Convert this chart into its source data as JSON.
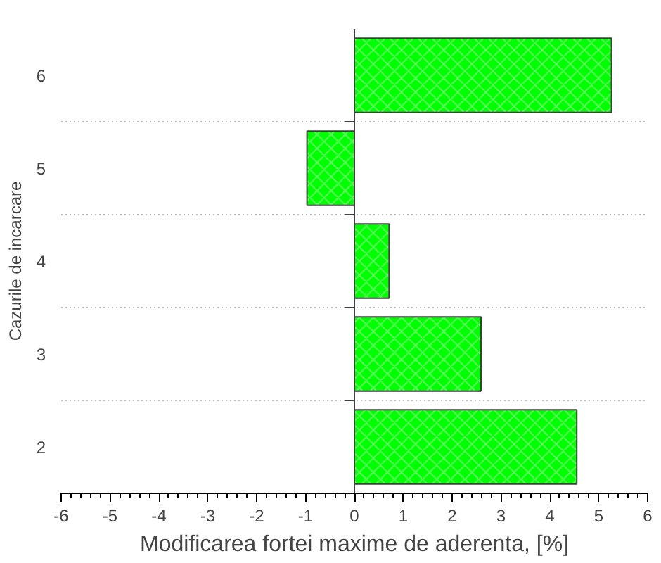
{
  "chart_data": {
    "type": "bar",
    "orientation": "horizontal",
    "xlabel": "Modificarea fortei maxime de aderenta, [%]",
    "ylabel": "Cazurile de incarcare",
    "categories": [
      "6",
      "5",
      "4",
      "3",
      "2"
    ],
    "values": [
      5.26,
      -0.97,
      0.71,
      2.59,
      4.55
    ],
    "color": "#00ff00",
    "xlim": [
      -6,
      6
    ],
    "xticks": [
      -6,
      -5,
      -4,
      -3,
      -2,
      -1,
      0,
      1,
      2,
      3,
      4,
      5,
      6
    ],
    "grid": "y"
  }
}
